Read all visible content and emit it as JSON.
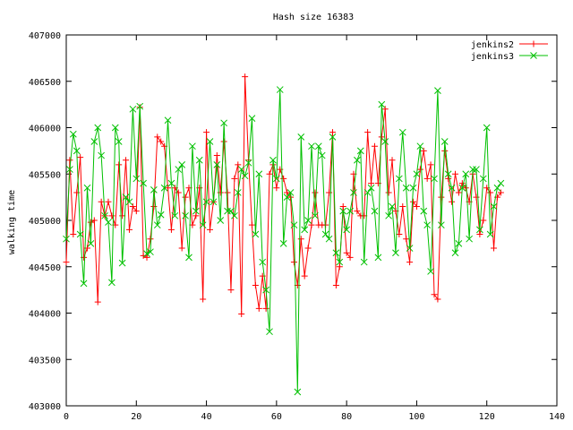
{
  "chart_data": {
    "type": "line",
    "title": "Hash size 16383",
    "xlabel": "",
    "ylabel": "walking time",
    "xlim": [
      0,
      140
    ],
    "ylim": [
      403000,
      407000
    ],
    "xticks": [
      0,
      20,
      40,
      60,
      80,
      100,
      120,
      140
    ],
    "yticks": [
      403000,
      403500,
      404000,
      404500,
      405000,
      405500,
      406000,
      406500,
      407000
    ],
    "grid": false,
    "legend": "top-right",
    "series": [
      {
        "name": "jenkins2",
        "color": "#ff0000",
        "marker": "plus",
        "x": [
          0,
          1,
          2,
          3,
          4,
          5,
          6,
          7,
          8,
          9,
          10,
          11,
          12,
          13,
          14,
          15,
          16,
          17,
          18,
          19,
          20,
          21,
          22,
          23,
          24,
          25,
          26,
          27,
          28,
          29,
          30,
          31,
          32,
          33,
          34,
          35,
          36,
          37,
          38,
          39,
          40,
          41,
          42,
          43,
          44,
          45,
          46,
          47,
          48,
          49,
          50,
          51,
          52,
          53,
          54,
          55,
          56,
          57,
          58,
          59,
          60,
          61,
          62,
          63,
          64,
          65,
          66,
          67,
          68,
          69,
          70,
          71,
          72,
          73,
          74,
          75,
          76,
          77,
          78,
          79,
          80,
          81,
          82,
          83,
          84,
          85,
          86,
          87,
          88,
          89,
          90,
          91,
          92,
          93,
          94,
          95,
          96,
          97,
          98,
          99,
          100,
          101,
          102,
          103,
          104,
          105,
          106,
          107,
          108,
          109,
          110,
          111,
          112,
          113,
          114,
          115,
          116,
          117,
          118,
          119,
          120,
          121,
          122,
          123,
          124
        ],
        "values": [
          404550,
          405650,
          404850,
          405300,
          405680,
          404600,
          404700,
          404980,
          405000,
          404120,
          405200,
          405050,
          405200,
          405050,
          404950,
          405600,
          405050,
          405650,
          404900,
          405150,
          405100,
          406220,
          404620,
          404600,
          404800,
          405150,
          405900,
          405850,
          405800,
          405350,
          404900,
          405350,
          405300,
          404700,
          405250,
          405350,
          404950,
          405050,
          405350,
          404150,
          405950,
          404900,
          405200,
          405700,
          405300,
          405850,
          405300,
          404250,
          405450,
          405600,
          403990,
          406550,
          405650,
          404950,
          404300,
          404050,
          404400,
          404050,
          405500,
          405600,
          405350,
          405550,
          405450,
          405300,
          405250,
          404550,
          404300,
          404800,
          404400,
          404700,
          404950,
          405300,
          404950,
          404950,
          404950,
          405300,
          405950,
          404300,
          404500,
          405150,
          404650,
          404600,
          405500,
          405100,
          405050,
          405050,
          405950,
          405400,
          405800,
          405400,
          405900,
          406200,
          405300,
          405650,
          405100,
          404850,
          405150,
          404800,
          404550,
          405200,
          405150,
          405550,
          405750,
          405450,
          405600,
          404200,
          404150,
          405250,
          405750,
          405450,
          405200,
          405500,
          405300,
          405400,
          405350,
          405200,
          405500,
          405250,
          404850,
          405000,
          405350,
          405300,
          404700,
          405250,
          405300
        ]
      },
      {
        "name": "jenkins3",
        "color": "#00c000",
        "marker": "cross",
        "x": [
          0,
          1,
          2,
          3,
          4,
          5,
          6,
          7,
          8,
          9,
          10,
          11,
          12,
          13,
          14,
          15,
          16,
          17,
          18,
          19,
          20,
          21,
          22,
          23,
          24,
          25,
          26,
          27,
          28,
          29,
          30,
          31,
          32,
          33,
          34,
          35,
          36,
          37,
          38,
          39,
          40,
          41,
          42,
          43,
          44,
          45,
          46,
          47,
          48,
          49,
          50,
          51,
          52,
          53,
          54,
          55,
          56,
          57,
          58,
          59,
          60,
          61,
          62,
          63,
          64,
          65,
          66,
          67,
          68,
          69,
          70,
          71,
          72,
          73,
          74,
          75,
          76,
          77,
          78,
          79,
          80,
          81,
          82,
          83,
          84,
          85,
          86,
          87,
          88,
          89,
          90,
          91,
          92,
          93,
          94,
          95,
          96,
          97,
          98,
          99,
          100,
          101,
          102,
          103,
          104,
          105,
          106,
          107,
          108,
          109,
          110,
          111,
          112,
          113,
          114,
          115,
          116,
          117,
          118,
          119,
          120,
          121,
          122,
          123,
          124
        ],
        "values": [
          404800,
          405550,
          405930,
          405750,
          404850,
          404320,
          405350,
          404750,
          405850,
          406000,
          405700,
          405050,
          404980,
          404330,
          406000,
          405850,
          404540,
          405250,
          405200,
          406200,
          405450,
          406230,
          405400,
          404640,
          404660,
          405330,
          404950,
          405060,
          405350,
          406080,
          405400,
          405050,
          405550,
          405600,
          405050,
          404600,
          405800,
          405100,
          405650,
          404950,
          405200,
          405850,
          405200,
          405600,
          405000,
          406050,
          405100,
          405100,
          405050,
          405300,
          405550,
          405480,
          405620,
          406100,
          404850,
          405500,
          404550,
          404250,
          403800,
          405650,
          405450,
          406410,
          404750,
          405250,
          405300,
          404950,
          403150,
          405900,
          404900,
          405000,
          405800,
          405050,
          405800,
          405700,
          404850,
          404800,
          405900,
          404650,
          404550,
          405100,
          404900,
          405100,
          405300,
          405650,
          405750,
          404550,
          405300,
          405350,
          405100,
          404600,
          406250,
          405850,
          405050,
          405150,
          404650,
          405450,
          405950,
          405350,
          404700,
          405350,
          405500,
          405800,
          405100,
          404950,
          404450,
          405450,
          406400,
          404950,
          405850,
          405500,
          405350,
          404650,
          404750,
          405350,
          405500,
          404800,
          405550,
          405550,
          404900,
          405450,
          406000,
          404850,
          405150,
          405350,
          405400
        ]
      }
    ]
  }
}
